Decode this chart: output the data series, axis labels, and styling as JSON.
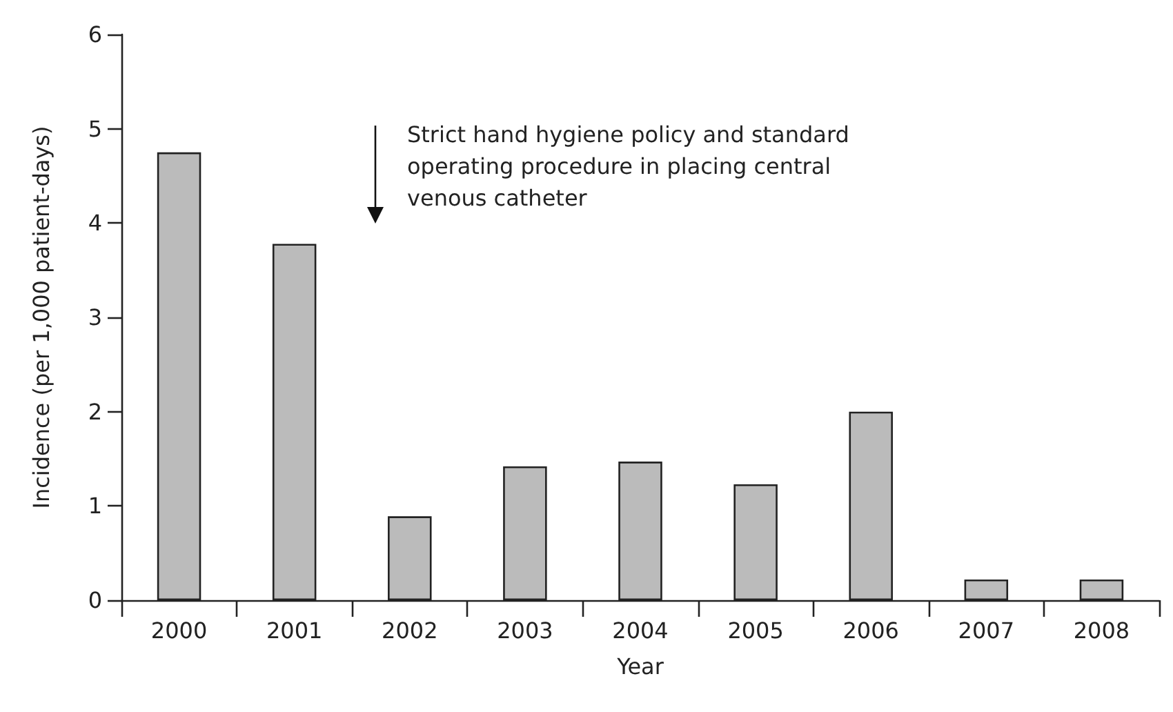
{
  "chart_data": {
    "type": "bar",
    "categories": [
      "2000",
      "2001",
      "2002",
      "2003",
      "2004",
      "2005",
      "2006",
      "2007",
      "2008"
    ],
    "values": [
      4.75,
      3.78,
      0.89,
      1.42,
      1.47,
      1.23,
      2.0,
      0.22,
      0.22
    ],
    "color": "#bbbbbb",
    "xlabel": "Year",
    "ylabel": "Incidence (per 1,000 patient-days)",
    "ylim": [
      0,
      6
    ],
    "yticks": [
      0,
      1,
      2,
      3,
      4,
      5,
      6
    ],
    "grid": false,
    "annotations": [
      "Strict hand hygiene policy and standard\noperating procedure in placing central\nvenous catheter"
    ]
  }
}
